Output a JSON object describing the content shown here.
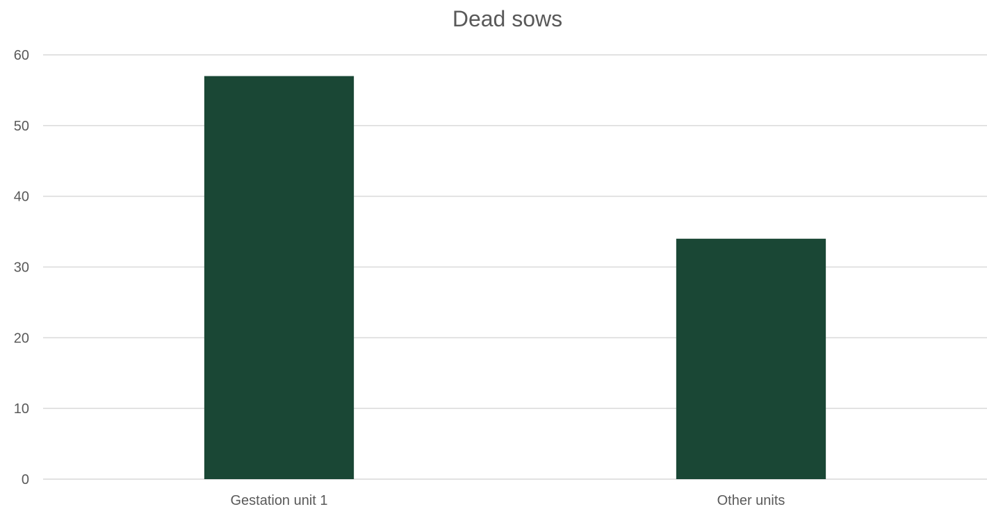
{
  "chart_data": {
    "type": "bar",
    "title": "Dead sows",
    "categories": [
      "Gestation unit 1",
      "Other units"
    ],
    "values": [
      57,
      34
    ],
    "ylim": [
      0,
      60
    ],
    "yticks": [
      0,
      10,
      20,
      30,
      40,
      50,
      60
    ],
    "xlabel": "",
    "ylabel": "",
    "grid": true,
    "legend": "none",
    "bar_color": "#1a4735"
  }
}
